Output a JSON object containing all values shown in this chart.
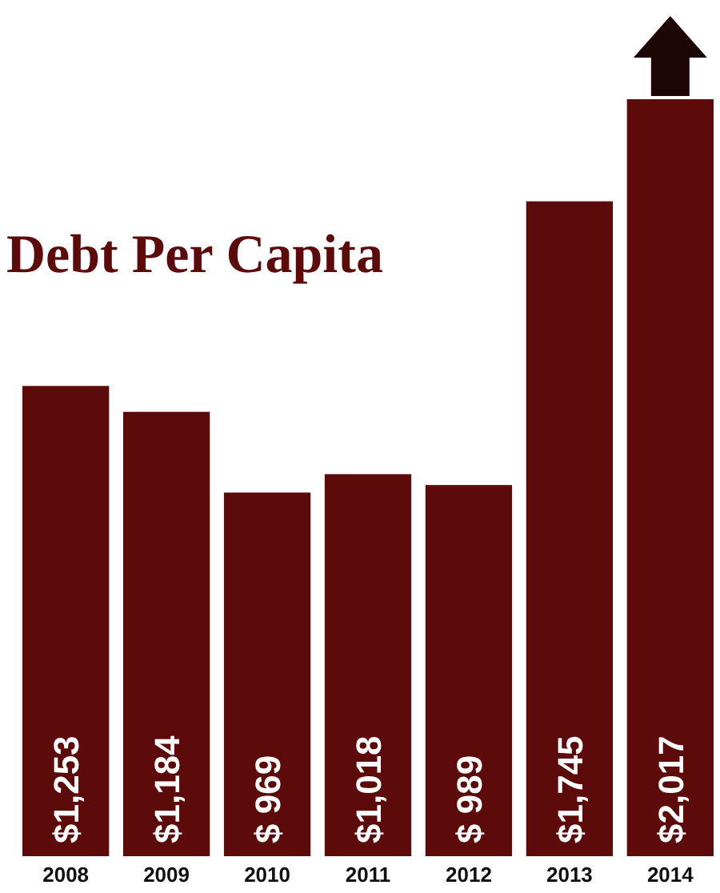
{
  "chart_data": {
    "type": "bar",
    "title": "Debt Per Capita",
    "categories": [
      "2008",
      "2009",
      "2010",
      "2011",
      "2012",
      "2013",
      "2014"
    ],
    "values": [
      1253,
      1184,
      969,
      1018,
      989,
      1745,
      2017
    ],
    "value_labels": [
      "$1,253",
      "$1,184",
      "$ 969",
      "$1,018",
      "$ 989",
      "$1,745",
      "$2,017"
    ],
    "color": "#5c0a0a"
  }
}
